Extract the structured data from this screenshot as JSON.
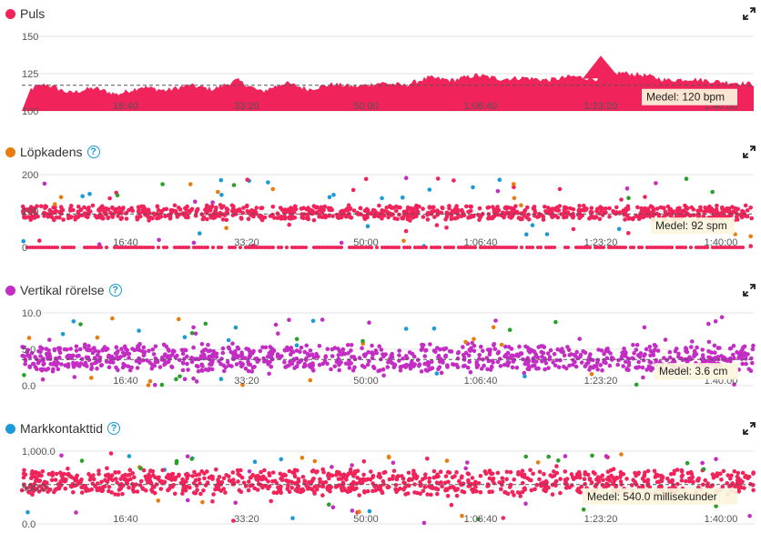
{
  "colors": {
    "pulse": "#f0245a",
    "cadence_header": "#e87d0d",
    "vertical_header": "#c32dc3",
    "contact_header": "#1a9ad6",
    "grid": "#e3e3e3",
    "axis": "#999999",
    "avg_line": "#555555"
  },
  "icons": {
    "help": "question-circle-icon",
    "expand": "expand-arrows-icon"
  },
  "chart_data": [
    {
      "id": "puls",
      "type": "area",
      "title": "Puls",
      "dot_color": "#f0245a",
      "has_help": false,
      "x_ticks": [
        "16:40",
        "33:20",
        "50:00",
        "1:06:40",
        "1:23:20",
        "1:40:00"
      ],
      "y_ticks": [
        "150",
        "125",
        "100"
      ],
      "ylim": [
        100,
        158
      ],
      "xlim_seconds": [
        0,
        6120
      ],
      "average": 120,
      "average_label": "Medel: 120 bpm",
      "series": [
        {
          "color": "#f0245a",
          "x_seconds": [
            0,
            200,
            400,
            600,
            800,
            1000,
            1200,
            1400,
            1600,
            1800,
            2000,
            2200,
            2400,
            2600,
            2800,
            3000,
            3200,
            3400,
            3600,
            3800,
            4000,
            4200,
            4400,
            4600,
            4800,
            5000,
            5200,
            5400,
            5600,
            5800,
            6000,
            6120
          ],
          "values": [
            115,
            121,
            114,
            118,
            113,
            119,
            116,
            120,
            117,
            124,
            115,
            122,
            117,
            121,
            119,
            122,
            120,
            126,
            124,
            128,
            125,
            126,
            124,
            127,
            125,
            130,
            128,
            124,
            125,
            123,
            122,
            121
          ]
        }
      ]
    },
    {
      "id": "lopkadens",
      "type": "scatter",
      "title": "Löpkadens",
      "dot_color": "#e87d0d",
      "has_help": true,
      "x_ticks": [
        "16:40",
        "33:20",
        "50:00",
        "1:06:40",
        "1:23:20",
        "1:40:00"
      ],
      "y_ticks": [
        "200",
        "100",
        "0"
      ],
      "ylim": [
        0,
        200
      ],
      "xlim_seconds": [
        0,
        6120
      ],
      "average": 92,
      "average_label": "Medel: 92 spm",
      "main_band": [
        78,
        112
      ],
      "zero_line_value": 0,
      "series": [
        {
          "name": "main",
          "color": "#f0245a"
        }
      ]
    },
    {
      "id": "vertikal",
      "type": "scatter",
      "title": "Vertikal rörelse",
      "dot_color": "#c32dc3",
      "has_help": true,
      "x_ticks": [
        "16:40",
        "33:20",
        "50:00",
        "1:06:40",
        "1:23:20",
        "1:40:00"
      ],
      "y_ticks": [
        "10.0",
        "5.0",
        "0.0"
      ],
      "ylim": [
        0,
        10
      ],
      "xlim_seconds": [
        0,
        6120
      ],
      "average": 3.6,
      "average_label": "Medel: 3.6 cm",
      "main_band": [
        2.2,
        5.4
      ],
      "series": [
        {
          "name": "main",
          "color": "#c32dc3"
        }
      ]
    },
    {
      "id": "markkontakttid",
      "type": "scatter",
      "title": "Markkontakttid",
      "dot_color": "#1a9ad6",
      "has_help": true,
      "x_ticks": [
        "16:40",
        "33:20",
        "50:00",
        "1:06:40",
        "1:23:20",
        "1:40:00"
      ],
      "y_ticks": [
        "1,000.0",
        "500.0",
        "0.0"
      ],
      "ylim": [
        0,
        1000
      ],
      "xlim_seconds": [
        0,
        6120
      ],
      "average": 540,
      "average_label": "Medel: 540.0 millisekunder",
      "main_band": [
        420,
        720
      ],
      "series": [
        {
          "name": "main",
          "color": "#f0245a"
        }
      ]
    }
  ]
}
